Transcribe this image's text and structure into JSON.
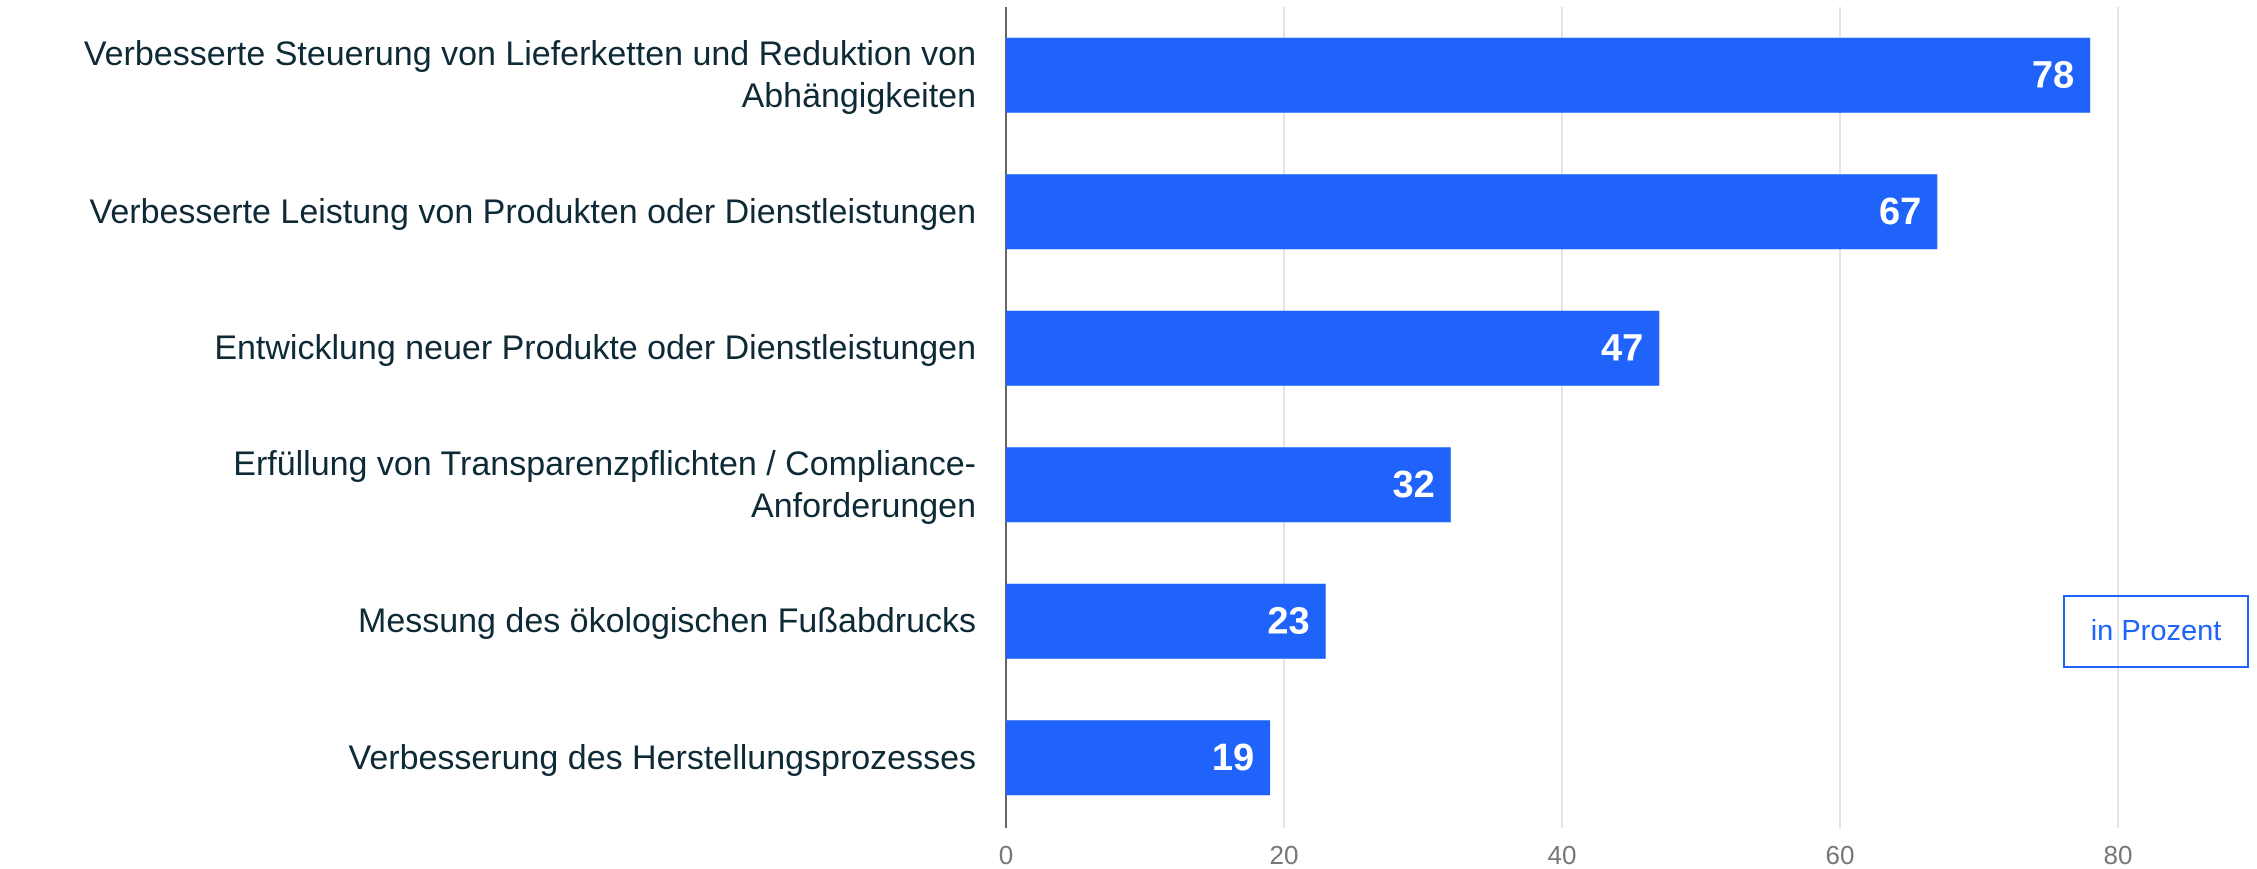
{
  "chart_data": {
    "type": "bar",
    "orientation": "horizontal",
    "categories": [
      "Verbesserte Steuerung von Lieferketten und Reduktion von Abhängigkeiten",
      "Verbesserte Leistung von Produkten oder Dienstleistungen",
      "Entwicklung neuer Produkte oder Dienstleistungen",
      "Erfüllung von Transparenzpflichten / Compliance-Anforderungen",
      "Messung des ökologischen Fußabdrucks",
      "Verbesserung des Herstellungsprozesses"
    ],
    "values": [
      78,
      67,
      47,
      32,
      23,
      19
    ],
    "color": "#1f63fb",
    "xlim": [
      0,
      86
    ],
    "xticks": [
      0,
      20,
      40,
      60,
      80
    ],
    "grid": true,
    "annotation": "in Prozent"
  }
}
